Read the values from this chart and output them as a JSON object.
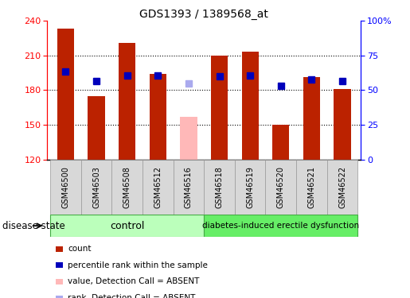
{
  "title": "GDS1393 / 1389568_at",
  "samples": [
    "GSM46500",
    "GSM46503",
    "GSM46508",
    "GSM46512",
    "GSM46516",
    "GSM46518",
    "GSM46519",
    "GSM46520",
    "GSM46521",
    "GSM46522"
  ],
  "counts": [
    233,
    175,
    221,
    194,
    null,
    210,
    213,
    150,
    191,
    181
  ],
  "absent_count": 157,
  "absent_index": 4,
  "percentile_ranks": [
    196,
    188,
    193,
    193,
    null,
    192,
    193,
    184,
    189,
    188
  ],
  "absent_rank": 186,
  "ylim_left": [
    120,
    240
  ],
  "ylim_right": [
    0,
    100
  ],
  "yticks_left": [
    120,
    150,
    180,
    210,
    240
  ],
  "yticks_right": [
    0,
    25,
    50,
    75,
    100
  ],
  "n_control": 5,
  "n_total": 10,
  "bar_color_normal": "#bb2200",
  "bar_color_absent": "#ffb8b8",
  "rank_color_normal": "#0000bb",
  "rank_color_absent": "#aaaaee",
  "control_label": "control",
  "disease_label": "diabetes-induced erectile dysfunction",
  "disease_state_label": "disease state",
  "legend_items": [
    {
      "color": "#bb2200",
      "label": "count"
    },
    {
      "color": "#0000bb",
      "label": "percentile rank within the sample"
    },
    {
      "color": "#ffb8b8",
      "label": "value, Detection Call = ABSENT"
    },
    {
      "color": "#aaaaee",
      "label": "rank, Detection Call = ABSENT"
    }
  ],
  "bar_width": 0.55,
  "rank_marker_size": 6,
  "background_color": "#ffffff",
  "group_box_color_light": "#bbffbb",
  "group_box_color_dark": "#66ee66",
  "xtick_box_color": "#d8d8d8",
  "grid_color": "#000000",
  "grid_linestyle": ":",
  "grid_linewidth": 0.8,
  "grid_yticks": [
    150,
    180,
    210
  ]
}
